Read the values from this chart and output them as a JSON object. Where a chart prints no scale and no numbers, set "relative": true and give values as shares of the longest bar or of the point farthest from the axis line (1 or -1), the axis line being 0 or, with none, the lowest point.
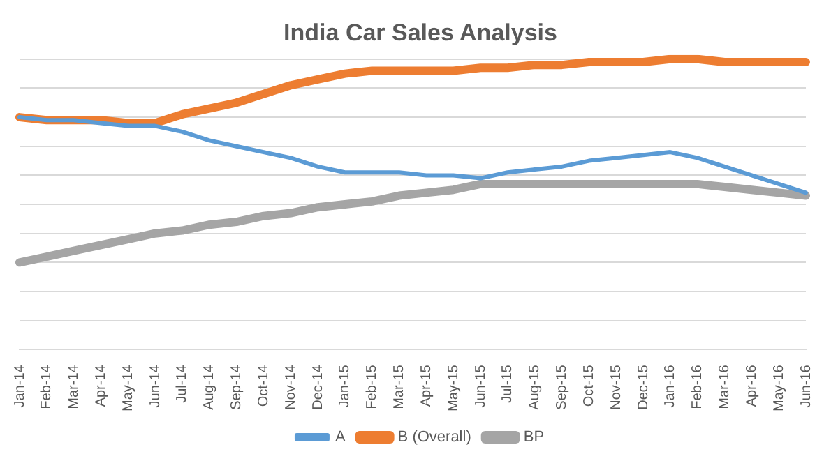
{
  "chart_data": {
    "type": "line",
    "title": "India Car Sales Analysis",
    "relative": true,
    "grid": "y",
    "legend": "bottom",
    "marker": "none",
    "line_style": "solid",
    "categories": [
      "Jan-14",
      "Feb-14",
      "Mar-14",
      "Apr-14",
      "May-14",
      "Jun-14",
      "Jul-14",
      "Aug-14",
      "Sep-14",
      "Oct-14",
      "Nov-14",
      "Dec-14",
      "Jan-15",
      "Feb-15",
      "Mar-15",
      "Apr-15",
      "May-15",
      "Jun-15",
      "Jul-15",
      "Aug-15",
      "Sep-15",
      "Oct-15",
      "Nov-15",
      "Dec-15",
      "Jan-16",
      "Feb-16",
      "Mar-16",
      "Apr-16",
      "May-16",
      "Jun-16"
    ],
    "series": [
      {
        "name": "A",
        "color": "#5b9bd5",
        "values": [
          0.8,
          0.79,
          0.79,
          0.78,
          0.77,
          0.77,
          0.75,
          0.72,
          0.7,
          0.68,
          0.66,
          0.63,
          0.61,
          0.61,
          0.61,
          0.6,
          0.6,
          0.59,
          0.61,
          0.62,
          0.63,
          0.65,
          0.66,
          0.67,
          0.68,
          0.66,
          0.63,
          0.6,
          0.57,
          0.54
        ]
      },
      {
        "name": "B (Overall)",
        "color": "#ed7d31",
        "values": [
          0.8,
          0.79,
          0.79,
          0.79,
          0.78,
          0.78,
          0.81,
          0.83,
          0.85,
          0.88,
          0.91,
          0.93,
          0.95,
          0.96,
          0.96,
          0.96,
          0.96,
          0.97,
          0.97,
          0.98,
          0.98,
          0.99,
          0.99,
          0.99,
          1.0,
          1.0,
          0.99,
          0.99,
          0.99,
          0.99
        ]
      },
      {
        "name": "BP",
        "color": "#a5a5a5",
        "values": [
          0.3,
          0.32,
          0.34,
          0.36,
          0.38,
          0.4,
          0.41,
          0.43,
          0.44,
          0.46,
          0.47,
          0.49,
          0.5,
          0.51,
          0.53,
          0.54,
          0.55,
          0.57,
          0.57,
          0.57,
          0.57,
          0.57,
          0.57,
          0.57,
          0.57,
          0.57,
          0.56,
          0.55,
          0.54,
          0.53
        ]
      }
    ]
  }
}
